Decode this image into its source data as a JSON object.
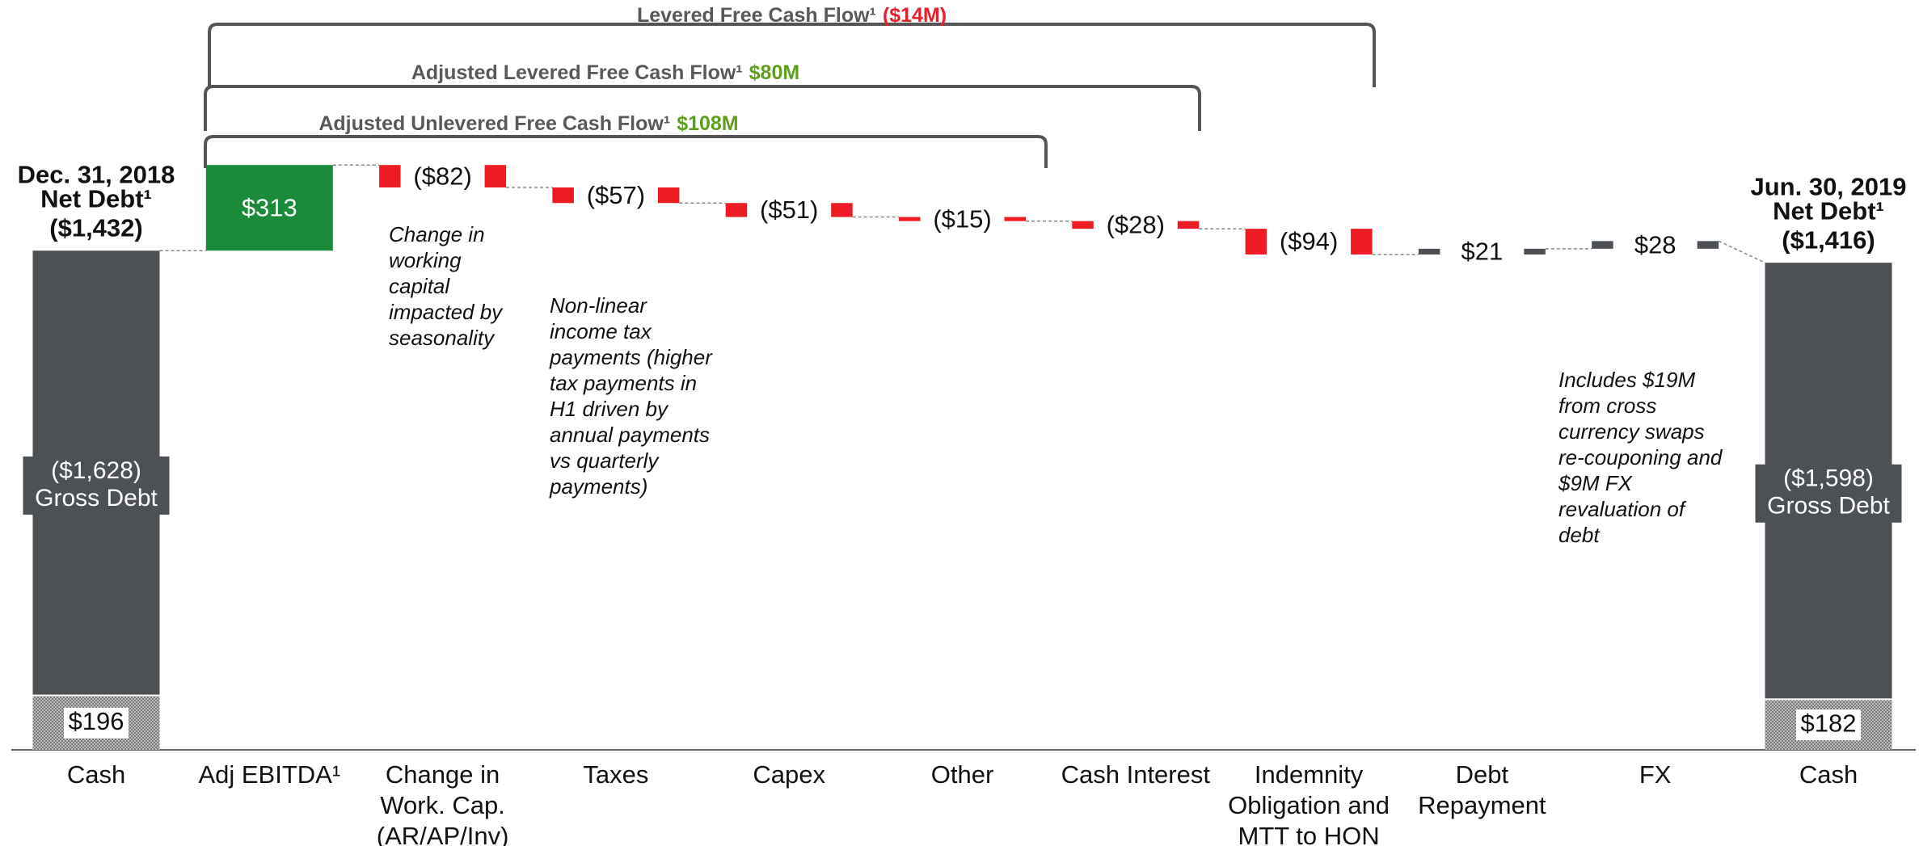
{
  "chart_data": {
    "type": "waterfall",
    "categories": [
      "Cash",
      "Adj EBITDA¹",
      "Change in\nWork. Cap.\n(AR/AP/Inv)",
      "Taxes",
      "Capex",
      "Other",
      "Cash Interest",
      "Indemnity\nObligation and\nMTT to HON",
      "Debt\nRepayment",
      "FX",
      "Cash"
    ],
    "start": {
      "title": "Dec. 31, 2018",
      "net_name": "Net Debt¹",
      "net": {
        "value": -1432,
        "label": "($1,432)"
      },
      "gross": {
        "value": -1628,
        "label": "($1,628)"
      },
      "gross_name": "Gross Debt",
      "cash": {
        "value": 196,
        "label": "$196"
      }
    },
    "end": {
      "title": "Jun. 30, 2019",
      "net_name": "Net Debt¹",
      "net": {
        "value": -1416,
        "label": "($1,416)"
      },
      "gross": {
        "value": -1598,
        "label": "($1,598)"
      },
      "gross_name": "Gross Debt",
      "cash": {
        "value": 182,
        "label": "$182"
      }
    },
    "debt_color": "#4d5155",
    "steps": {
      "values": [
        313,
        -82,
        -57,
        -51,
        -15,
        -28,
        -94,
        21,
        28
      ],
      "value_labels": [
        "$313",
        "($82)",
        "($57)",
        "($51)",
        "($15)",
        "($28)",
        "($94)",
        "$21",
        "$28"
      ],
      "colors": [
        "#1b8a3a",
        "#ed1c24",
        "#ed1c24",
        "#ed1c24",
        "#ed1c24",
        "#ed1c24",
        "#ed1c24",
        "#4d5155",
        "#4d5155"
      ]
    },
    "brackets": [
      {
        "label": "Levered Free Cash Flow¹",
        "amount": {
          "value": -14,
          "label": "($14M)"
        },
        "color": "#e8202a"
      },
      {
        "label": "Adjusted Levered Free Cash Flow¹",
        "amount": {
          "value": 80,
          "label": "$80M"
        },
        "color": "#5ea01e"
      },
      {
        "label": "Adjusted Unlevered Free Cash Flow¹",
        "amount": {
          "value": 108,
          "label": "$108M"
        },
        "color": "#5ea01e"
      }
    ],
    "annotations": [
      "Change in\nworking\ncapital\nimpacted by\nseasonality",
      "Non-linear\nincome tax\npayments (higher\ntax payments in\nH1 driven by\nannual payments\nvs quarterly\npayments)",
      "Includes $19M\nfrom cross\ncurrency swaps\nre-couponing and\n$9M FX\nrevaluation of\ndebt"
    ]
  }
}
